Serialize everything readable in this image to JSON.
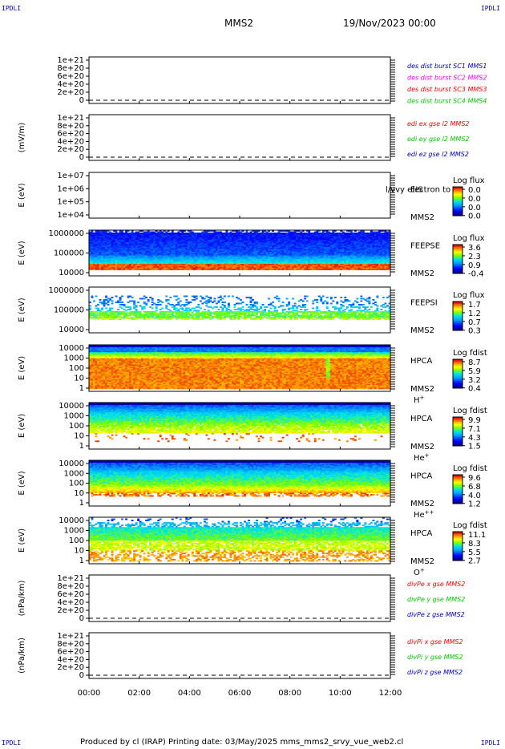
{
  "corner_labels": {
    "top_left": "IPDLI",
    "top_right": "IPDLI",
    "bottom_left": "IPDLI",
    "bottom_right": "IPDLI"
  },
  "header": {
    "mission": "MMS2",
    "date": "19/Nov/2023 00:00"
  },
  "footer": {
    "text": "Produced by cl (IRAP)    Printing date: 03/May/2025    mms_mms2_srvy_vue_web2.cl"
  },
  "x_axis": {
    "ticks": [
      "00:00",
      "02:00",
      "04:00",
      "06:00",
      "08:00",
      "10:00",
      "12:00"
    ]
  },
  "colors": {
    "legend_red": "#ff0000",
    "legend_green": "#00cc00",
    "legend_blue": "#0000cc",
    "legend_magenta": "#ff00ff"
  },
  "chart_data": [
    {
      "type": "line",
      "ylabel": "",
      "ylim": [
        0,
        1.1e+21
      ],
      "yticks": [
        "1e+21",
        "8e+20",
        "6e+20",
        "4e+20",
        "2e+20",
        "0"
      ],
      "legend": [
        {
          "text": "des dist burst SC1 MMS1",
          "color": "#0000cc"
        },
        {
          "text": "des dist burst SC2 MMS2",
          "color": "#ff00ff"
        },
        {
          "text": "des dist burst SC3 MMS3",
          "color": "#ff0000"
        },
        {
          "text": "des dist burst SC4 MMS4",
          "color": "#00cc00"
        }
      ],
      "zero_line": true
    },
    {
      "type": "line",
      "ylabel": "(mV/m)",
      "ylim": [
        0,
        1.1e+21
      ],
      "yticks": [
        "1e+21",
        "8e+20",
        "6e+20",
        "4e+20",
        "2e+20",
        "0"
      ],
      "legend": [
        {
          "text": "edi ex gse l2 MMS2",
          "color": "#ff0000"
        },
        {
          "text": "edi ey gse l2 MMS2",
          "color": "#00cc00"
        },
        {
          "text": "edi ez gse l2 MMS2",
          "color": "#0000cc"
        }
      ],
      "zero_line": true
    },
    {
      "type": "heatmap",
      "ylabel": "E (eV)",
      "yticks": [
        "1e+07",
        "1e+06",
        "1e+05",
        "1e+04"
      ],
      "instrument": [
        "EIS",
        "MMS2"
      ],
      "overlay_text": "l/vvy electron to",
      "cb_title": "Log flux",
      "cb_ticks": [
        "0.0",
        "0.0",
        "0.0",
        "0.0"
      ],
      "fill": "empty"
    },
    {
      "type": "heatmap",
      "ylabel": "E (eV)",
      "yticks": [
        "1000000",
        "100000",
        "10000"
      ],
      "instrument": [
        "FEEPSE",
        "MMS2"
      ],
      "species": "",
      "cb_title": "Log flux",
      "cb_ticks": [
        "3.6",
        "2.3",
        "0.9",
        "-0.4"
      ],
      "fill": "feepse"
    },
    {
      "type": "heatmap",
      "ylabel": "E (eV)",
      "yticks": [
        "1000000",
        "100000",
        "10000"
      ],
      "instrument": [
        "FEEPSI",
        "MMS2"
      ],
      "species": "",
      "cb_title": "Log flux",
      "cb_ticks": [
        "1.7",
        "1.2",
        "0.7",
        "0.3"
      ],
      "fill": "feepsi"
    },
    {
      "type": "heatmap",
      "ylabel": "E (eV)",
      "yticks": [
        "10000",
        "1000",
        "100",
        "10",
        "1"
      ],
      "instrument": [
        "HPCA",
        "MMS2"
      ],
      "species": "H",
      "species_sup": "+",
      "cb_title": "Log fdist",
      "cb_ticks": [
        "8.7",
        "5.9",
        "3.2",
        "0.4"
      ],
      "fill": "hplus"
    },
    {
      "type": "heatmap",
      "ylabel": "E (eV)",
      "yticks": [
        "10000",
        "1000",
        "100",
        "10",
        "1"
      ],
      "instrument": [
        "HPCA",
        "MMS2"
      ],
      "species": "He",
      "species_sup": "+",
      "cb_title": "Log fdist",
      "cb_ticks": [
        "9.9",
        "7.1",
        "4.3",
        "1.5"
      ],
      "fill": "heplus"
    },
    {
      "type": "heatmap",
      "ylabel": "E (eV)",
      "yticks": [
        "10000",
        "1000",
        "100",
        "10",
        "1"
      ],
      "instrument": [
        "HPCA",
        "MMS2"
      ],
      "species": "He",
      "species_sup": "++",
      "cb_title": "Log fdist",
      "cb_ticks": [
        "9.6",
        "6.8",
        "4.0",
        "1.2"
      ],
      "fill": "heplusplus"
    },
    {
      "type": "heatmap",
      "ylabel": "E (eV)",
      "yticks": [
        "10000",
        "1000",
        "100",
        "10",
        "1"
      ],
      "instrument": [
        "HPCA",
        "MMS2"
      ],
      "species": "O",
      "species_sup": "+",
      "cb_title": "Log fdist",
      "cb_ticks": [
        "11.1",
        "8.3",
        "5.5",
        "2.7"
      ],
      "fill": "oplus"
    },
    {
      "type": "line",
      "ylabel": "(nPa/km)",
      "ylim": [
        0,
        1.1e+21
      ],
      "yticks": [
        "1e+21",
        "8e+20",
        "6e+20",
        "4e+20",
        "2e+20",
        "0"
      ],
      "legend": [
        {
          "text": "divPe x gse MMS2",
          "color": "#ff0000"
        },
        {
          "text": "divPe y gse MMS2",
          "color": "#00cc00"
        },
        {
          "text": "divPe z gse MMS2",
          "color": "#0000cc"
        }
      ],
      "zero_line": true
    },
    {
      "type": "line",
      "ylabel": "(nPa/km)",
      "ylim": [
        0,
        1.1e+21
      ],
      "yticks": [
        "1e+21",
        "8e+20",
        "6e+20",
        "4e+20",
        "2e+20",
        "0"
      ],
      "legend": [
        {
          "text": "divPi x gse MMS2",
          "color": "#ff0000"
        },
        {
          "text": "divPi y gse MMS2",
          "color": "#00cc00"
        },
        {
          "text": "divPi z gse MMS2",
          "color": "#0000cc"
        }
      ],
      "zero_line": true
    }
  ]
}
